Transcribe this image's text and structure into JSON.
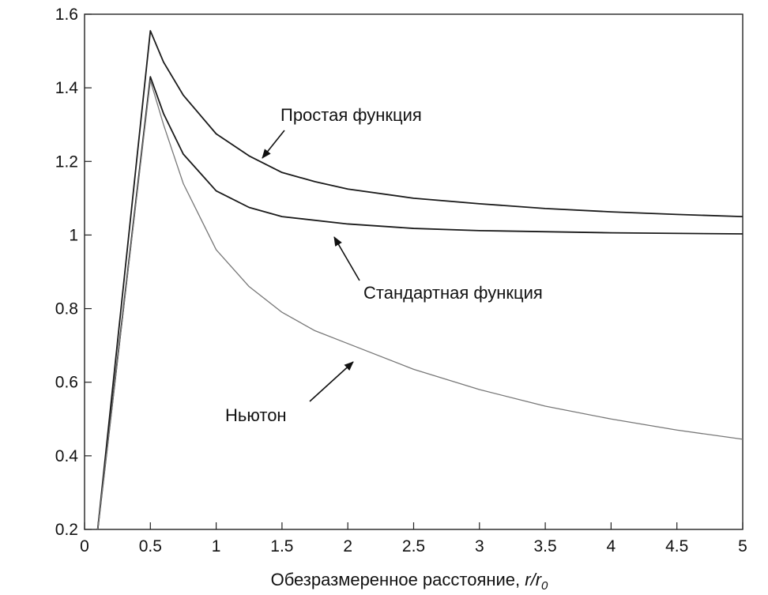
{
  "chart_data": {
    "type": "line",
    "xlabel": "Обезразмеренное расстояние, r/r₀",
    "xlabel_main": "Обезразмеренное расстояние, ",
    "xlabel_var": "r/r",
    "xlabel_sub": "0",
    "ylabel": "",
    "xlim": [
      0,
      5
    ],
    "ylim": [
      0.2,
      1.6
    ],
    "x_ticks": [
      "0",
      "0.5",
      "1",
      "1.5",
      "2",
      "2.5",
      "3",
      "3.5",
      "4",
      "4.5",
      "5"
    ],
    "y_ticks": [
      "0.2",
      "0.4",
      "0.6",
      "0.8",
      "1",
      "1.2",
      "1.4",
      "1.6"
    ],
    "grid": false,
    "series": [
      {
        "name": "Простая функция",
        "color": "#1a1a1a",
        "points": [
          [
            0.1,
            0.2
          ],
          [
            0.5,
            1.555
          ],
          [
            0.6,
            1.47
          ],
          [
            0.75,
            1.38
          ],
          [
            1.0,
            1.275
          ],
          [
            1.25,
            1.215
          ],
          [
            1.5,
            1.17
          ],
          [
            1.75,
            1.145
          ],
          [
            2.0,
            1.125
          ],
          [
            2.5,
            1.1
          ],
          [
            3.0,
            1.085
          ],
          [
            3.5,
            1.072
          ],
          [
            4.0,
            1.063
          ],
          [
            4.5,
            1.056
          ],
          [
            5.0,
            1.05
          ]
        ]
      },
      {
        "name": "Стандартная функция",
        "color": "#1a1a1a",
        "points": [
          [
            0.1,
            0.2
          ],
          [
            0.5,
            1.43
          ],
          [
            0.6,
            1.33
          ],
          [
            0.75,
            1.22
          ],
          [
            1.0,
            1.12
          ],
          [
            1.25,
            1.075
          ],
          [
            1.5,
            1.05
          ],
          [
            2.0,
            1.03
          ],
          [
            2.5,
            1.018
          ],
          [
            3.0,
            1.012
          ],
          [
            4.0,
            1.006
          ],
          [
            5.0,
            1.003
          ]
        ]
      },
      {
        "name": "Ньютон",
        "color": "#777777",
        "points": [
          [
            0.1,
            0.2
          ],
          [
            0.5,
            1.42
          ],
          [
            0.6,
            1.3
          ],
          [
            0.75,
            1.14
          ],
          [
            1.0,
            0.96
          ],
          [
            1.25,
            0.86
          ],
          [
            1.5,
            0.79
          ],
          [
            1.75,
            0.74
          ],
          [
            2.0,
            0.705
          ],
          [
            2.5,
            0.635
          ],
          [
            3.0,
            0.58
          ],
          [
            3.5,
            0.535
          ],
          [
            4.0,
            0.5
          ],
          [
            4.5,
            0.47
          ],
          [
            5.0,
            0.445
          ]
        ]
      }
    ],
    "annotations": [
      {
        "text": "Простая функция",
        "target": [
          1.35,
          1.22
        ]
      },
      {
        "text": "Стандартная функция",
        "target": [
          1.9,
          1.035
        ]
      },
      {
        "text": "Ньютон",
        "target": [
          2.05,
          0.68
        ]
      }
    ]
  }
}
